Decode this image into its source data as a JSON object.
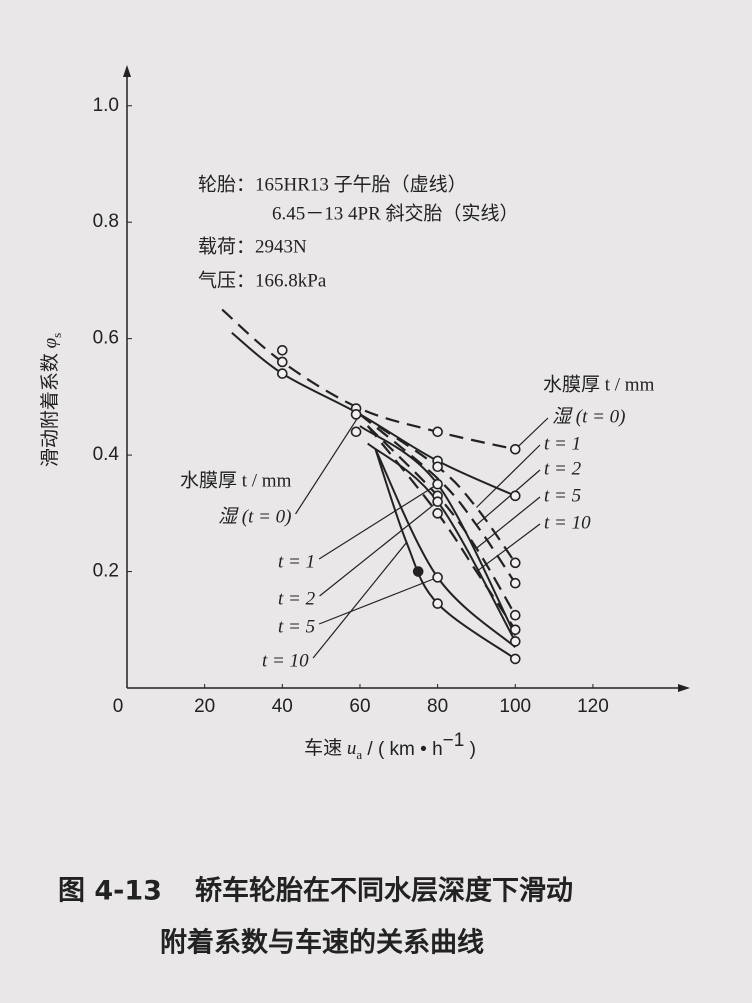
{
  "chart_data": {
    "type": "line",
    "notes": [
      "轮胎：165HR13 子午胎（虚线）",
      "6.45－13 4PR 斜交胎（实线）",
      "载荷：2943N",
      "气压：166.8kPa"
    ],
    "group_titles": [
      "水膜厚 t / mm",
      "水膜厚 t / mm"
    ],
    "y_label_parts": [
      "滑动附着系数 ",
      "φ",
      "s"
    ],
    "x_label_parts": [
      "车速 ",
      "u",
      "a",
      " / ( km • h",
      "−1",
      " )"
    ],
    "caption_number": "图 4-13",
    "caption_lines": [
      "轿车轮胎在不同水层深度下滑动",
      "附着系数与车速的关系曲线"
    ],
    "xlim": [
      0,
      145
    ],
    "ylim": [
      0,
      1.07
    ],
    "xticks": [
      0,
      20,
      40,
      60,
      80,
      100,
      120
    ],
    "yticks": [
      0.2,
      0.4,
      0.6,
      0.8,
      {
        "value": 1,
        "label": "1.0"
      }
    ],
    "color": "#222222",
    "series": [
      {
        "name": "湿 (t = 0)",
        "style": "dashed",
        "x": [
          24.5,
          40,
          60,
          80,
          100
        ],
        "values": [
          0.65,
          0.56,
          0.48,
          0.44,
          0.41
        ]
      },
      {
        "name": "t = 1",
        "style": "dashed",
        "x": [
          60,
          80,
          90,
          100
        ],
        "values": [
          0.47,
          0.38,
          0.31,
          0.215
        ]
      },
      {
        "name": "t = 2",
        "style": "dashed",
        "x": [
          60,
          80,
          90,
          100
        ],
        "values": [
          0.47,
          0.36,
          0.28,
          0.18
        ]
      },
      {
        "name": "t = 5",
        "style": "dashed",
        "x": [
          62,
          80,
          90,
          100
        ],
        "values": [
          0.45,
          0.33,
          0.24,
          0.125
        ]
      },
      {
        "name": "t = 10",
        "style": "dashed",
        "x": [
          62,
          80,
          90,
          100
        ],
        "values": [
          0.45,
          0.3,
          0.2,
          0.1
        ]
      },
      {
        "name": "湿 (t = 0)",
        "style": "solid",
        "x": [
          27,
          40,
          60,
          80,
          100
        ],
        "values": [
          0.61,
          0.54,
          0.47,
          0.39,
          0.33
        ]
      },
      {
        "name": "t = 1",
        "style": "solid",
        "x": [
          60,
          80,
          100
        ],
        "values": [
          0.45,
          0.35,
          0.09
        ]
      },
      {
        "name": "t = 2",
        "style": "solid",
        "x": [
          62,
          80,
          100
        ],
        "values": [
          0.42,
          0.32,
          0.08
        ]
      },
      {
        "name": "t = 5",
        "style": "solid",
        "x": [
          64,
          80,
          100
        ],
        "values": [
          0.41,
          0.19,
          0.07
        ]
      },
      {
        "name": "t = 10",
        "style": "solid",
        "x": [
          64,
          72,
          80,
          100
        ],
        "values": [
          0.41,
          0.25,
          0.145,
          0.05
        ]
      }
    ],
    "points": {
      "x": [
        40,
        40,
        40,
        59,
        59,
        59,
        80,
        80,
        80,
        80,
        80,
        80,
        80,
        80,
        80,
        75,
        100,
        100,
        100,
        100,
        100,
        100,
        100,
        100
      ],
      "values": [
        0.58,
        0.56,
        0.54,
        0.48,
        0.47,
        0.44,
        0.44,
        0.39,
        0.38,
        0.35,
        0.33,
        0.32,
        0.3,
        0.19,
        0.145,
        0.2,
        0.41,
        0.33,
        0.215,
        0.18,
        0.125,
        0.1,
        0.08,
        0.05
      ],
      "filled": [
        false,
        false,
        false,
        false,
        false,
        false,
        false,
        false,
        false,
        false,
        false,
        false,
        false,
        false,
        false,
        true,
        false,
        false,
        false,
        false,
        false,
        false,
        false,
        false
      ]
    }
  }
}
